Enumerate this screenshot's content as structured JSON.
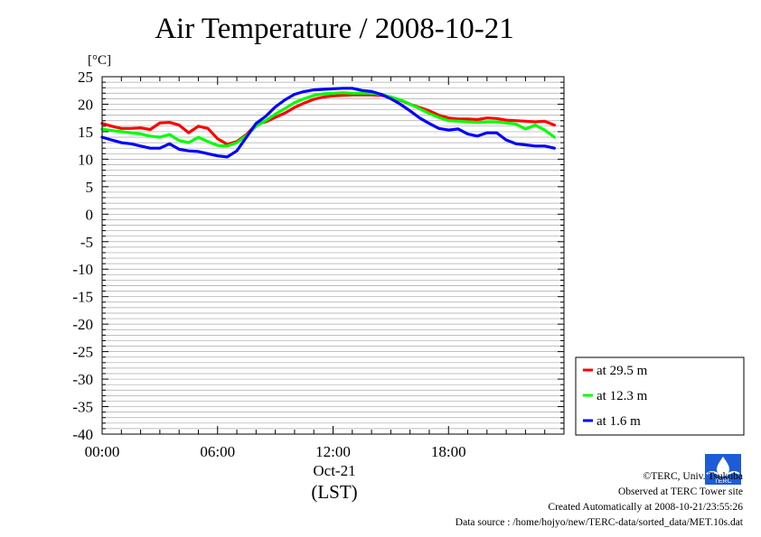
{
  "title": "Air Temperature / 2008-10-21",
  "footer": {
    "copyright": "©TERC, Univ. Tsukuba",
    "site": "Observed at TERC Tower site",
    "created": "Created Automatically at 2008-10-21/23:55:26",
    "source": "Data source : /home/hojyo/new/TERC-data/sorted_data/MET.10s.dat",
    "logo_text": "TERC"
  },
  "chart_data": {
    "type": "line",
    "title": "Air Temperature / 2008-10-21",
    "ylabel": "[°C]",
    "xlabel": "(LST)",
    "x_date_label": "Oct-21",
    "xlim": [
      0,
      24
    ],
    "ylim": [
      -40,
      25
    ],
    "y_ticks": [
      "25",
      "20",
      "15",
      "10",
      "5",
      "0",
      "-5",
      "-10",
      "-15",
      "-20",
      "-25",
      "-30",
      "-35",
      "-40"
    ],
    "x_ticks": [
      {
        "value": 0,
        "label": "00:00"
      },
      {
        "value": 6,
        "label": "06:00"
      },
      {
        "value": 12,
        "label": "12:00"
      },
      {
        "value": 18,
        "label": "18:00"
      }
    ],
    "grid": true,
    "legend_position": "bottom-right",
    "x": [
      0,
      0.5,
      1,
      1.5,
      2,
      2.5,
      3,
      3.5,
      4,
      4.5,
      5,
      5.5,
      6,
      6.5,
      7,
      7.5,
      8,
      8.5,
      9,
      9.5,
      10,
      10.5,
      11,
      11.5,
      12,
      12.5,
      13,
      13.5,
      14,
      14.5,
      15,
      15.5,
      16,
      16.5,
      17,
      17.5,
      18,
      18.5,
      19,
      19.5,
      20,
      20.5,
      21,
      21.5,
      22,
      22.5,
      23,
      23.5
    ],
    "series": [
      {
        "name": "at 29.5 m",
        "color": "#ff0000",
        "values": [
          16.5,
          16.0,
          15.6,
          15.6,
          15.7,
          15.4,
          16.6,
          16.7,
          16.2,
          14.8,
          16.0,
          15.6,
          13.7,
          12.7,
          13.2,
          14.5,
          16.3,
          16.8,
          17.6,
          18.4,
          19.4,
          20.2,
          20.9,
          21.3,
          21.5,
          21.6,
          21.7,
          21.7,
          21.7,
          21.6,
          21.3,
          20.7,
          20.0,
          19.4,
          18.8,
          18.0,
          17.5,
          17.3,
          17.3,
          17.2,
          17.5,
          17.4,
          17.1,
          17.0,
          16.9,
          16.8,
          16.9,
          16.2
        ]
      },
      {
        "name": "at 12.3 m",
        "color": "#00ff00",
        "values": [
          15.5,
          15.2,
          15.0,
          14.8,
          14.6,
          14.2,
          14.0,
          14.5,
          13.4,
          13.0,
          14.0,
          13.2,
          12.5,
          12.4,
          13.0,
          14.3,
          16.0,
          17.0,
          18.2,
          19.2,
          20.3,
          21.0,
          21.6,
          21.9,
          22.0,
          22.1,
          22.0,
          22.0,
          22.0,
          21.8,
          21.3,
          20.8,
          20.0,
          19.2,
          18.3,
          17.6,
          17.0,
          16.9,
          16.8,
          16.7,
          16.8,
          16.8,
          16.6,
          16.4,
          15.5,
          16.2,
          15.3,
          14.0
        ]
      },
      {
        "name": "at 1.6 m",
        "color": "#0000ff",
        "values": [
          14.0,
          13.5,
          13.0,
          12.8,
          12.4,
          12.0,
          12.0,
          12.8,
          11.8,
          11.5,
          11.4,
          11.0,
          10.6,
          10.4,
          11.5,
          14.0,
          16.5,
          17.8,
          19.5,
          20.8,
          21.8,
          22.3,
          22.6,
          22.7,
          22.8,
          22.9,
          22.9,
          22.5,
          22.3,
          21.8,
          21.0,
          20.0,
          18.8,
          17.5,
          16.5,
          15.6,
          15.3,
          15.5,
          14.6,
          14.2,
          14.8,
          14.8,
          13.5,
          12.8,
          12.6,
          12.4,
          12.4,
          12.0
        ]
      }
    ]
  }
}
